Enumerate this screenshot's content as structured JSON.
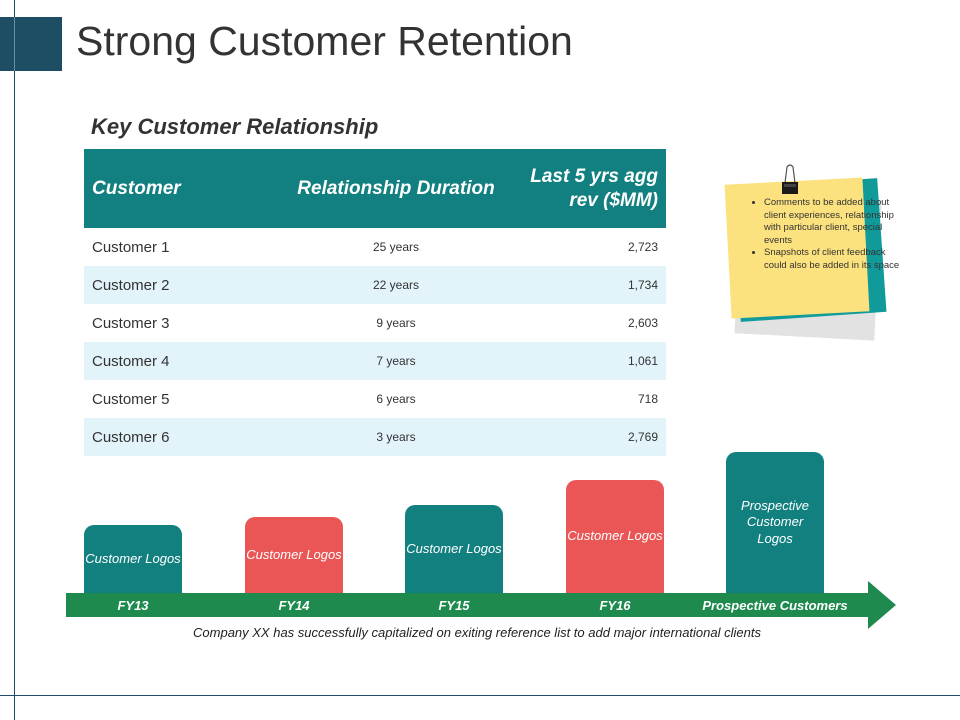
{
  "page": {
    "title": "Strong Customer Retention"
  },
  "section": {
    "title": "Key Customer Relationship"
  },
  "table": {
    "headers": [
      "Customer",
      "Relationship Duration",
      "Last 5 yrs agg rev ($MM)"
    ],
    "rows": [
      {
        "customer": "Customer 1",
        "duration": "25 years",
        "revenue": "2,723"
      },
      {
        "customer": "Customer 2",
        "duration": "22 years",
        "revenue": "1,734"
      },
      {
        "customer": "Customer 3",
        "duration": "9 years",
        "revenue": "2,603"
      },
      {
        "customer": "Customer 4",
        "duration": "7 years",
        "revenue": "1,061"
      },
      {
        "customer": "Customer 5",
        "duration": "6 years",
        "revenue": "718"
      },
      {
        "customer": "Customer 6",
        "duration": "3 years",
        "revenue": "2,769"
      }
    ]
  },
  "note": {
    "items": [
      "Comments to be added about client experiences, relationship with particular client, special events",
      "Snapshots of client feedback could also be added in its space"
    ]
  },
  "timeline": {
    "stages": [
      {
        "box": "Customer Logos",
        "label": "FY13",
        "color": "teal"
      },
      {
        "box": "Customer Logos",
        "label": "FY14",
        "color": "red"
      },
      {
        "box": "Customer Logos",
        "label": "FY15",
        "color": "teal"
      },
      {
        "box": "Customer Logos",
        "label": "FY16",
        "color": "red"
      },
      {
        "box": "Prospective Customer Logos",
        "label": "Prospective Customers",
        "color": "teal"
      }
    ],
    "caption": "Company XX has successfully capitalized on exiting reference list to add major international clients"
  },
  "colors": {
    "teal": "#138080",
    "red": "#ea5556",
    "arrow": "#1e8a4e",
    "note": "#fbe27e",
    "row_alt": "#e2f3fa"
  }
}
